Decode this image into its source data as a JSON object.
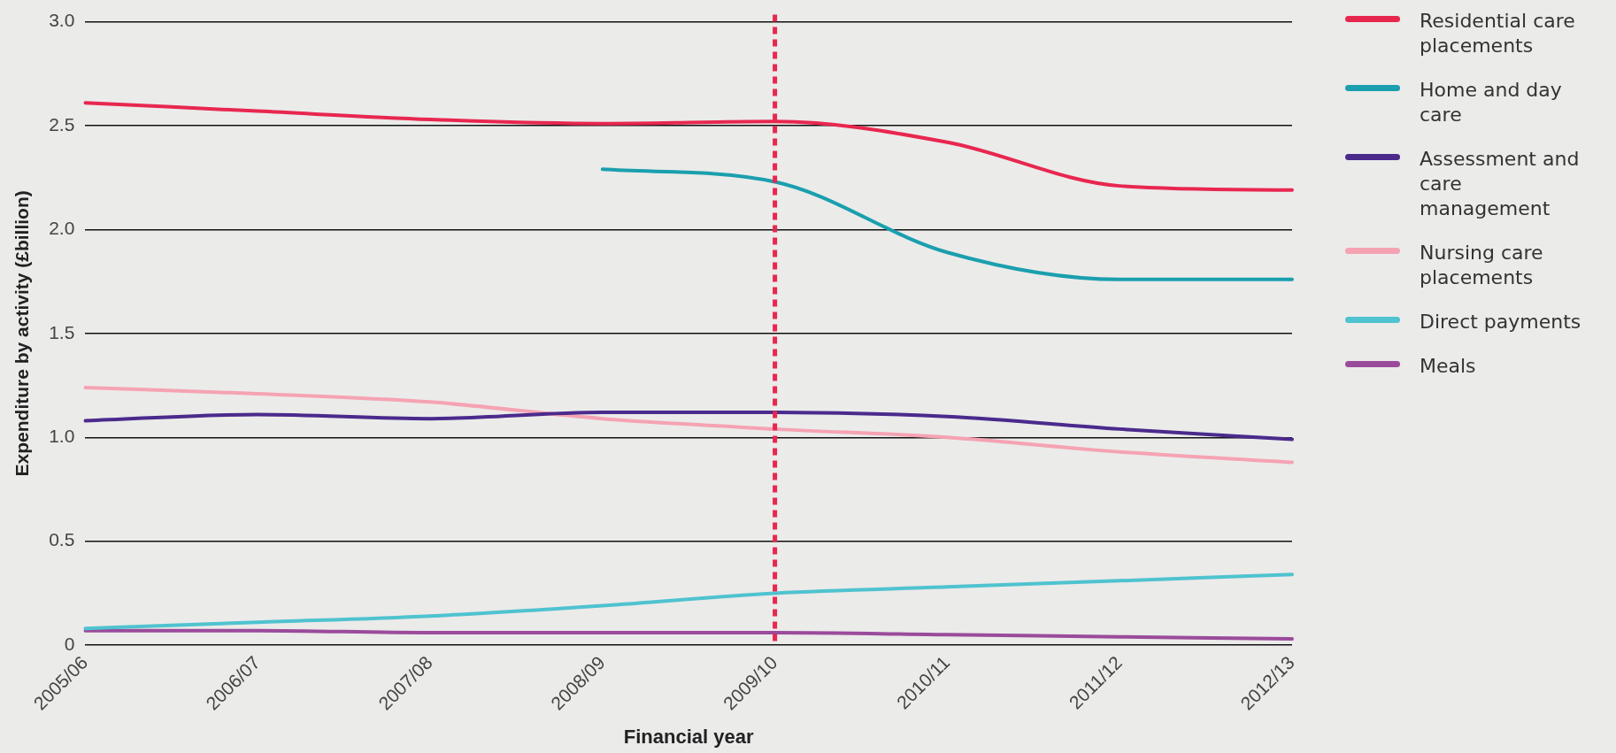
{
  "chart_data": {
    "type": "line",
    "xlabel": "Financial year",
    "ylabel": "Expenditure by activity (£billion)",
    "categories": [
      "2005/06",
      "2006/07",
      "2007/08",
      "2008/09",
      "2009/10",
      "2010/11",
      "2011/12",
      "2012/13"
    ],
    "series": [
      {
        "name": "Residential care placements",
        "color": "#e8274f",
        "values": [
          2.61,
          2.57,
          2.53,
          2.51,
          2.52,
          2.42,
          2.21,
          2.19
        ]
      },
      {
        "name": "Home and day care",
        "color": "#1a9fae",
        "values": [
          null,
          null,
          null,
          2.29,
          2.23,
          1.89,
          1.76,
          1.76
        ]
      },
      {
        "name": "Assessment and care management",
        "color": "#4b2a8c",
        "values": [
          1.08,
          1.11,
          1.09,
          1.12,
          1.12,
          1.1,
          1.04,
          0.99
        ]
      },
      {
        "name": "Nursing care placements",
        "color": "#f5a3b3",
        "values": [
          1.24,
          1.21,
          1.17,
          1.09,
          1.04,
          1.0,
          0.93,
          0.88
        ]
      },
      {
        "name": "Direct payments",
        "color": "#4fc3cf",
        "values": [
          0.08,
          0.11,
          0.14,
          0.19,
          0.25,
          0.28,
          0.31,
          0.34
        ]
      },
      {
        "name": "Meals",
        "color": "#9b4b9b",
        "values": [
          0.07,
          0.07,
          0.06,
          0.06,
          0.06,
          0.05,
          0.04,
          0.03
        ]
      }
    ],
    "ylim": [
      0,
      3.0
    ],
    "yticks": [
      0,
      {
        "value": 0.5,
        "label": "0.5"
      },
      {
        "value": 1,
        "label": "1.0"
      },
      {
        "value": 1.5,
        "label": "1.5"
      },
      {
        "value": 2,
        "label": "2.0"
      },
      {
        "value": 2.5,
        "label": "2.5"
      },
      {
        "value": 3,
        "label": "3.0"
      }
    ],
    "ref_lines": [
      {
        "axis": "x",
        "value": "2009/10",
        "color": "#e8274f",
        "line_style": "dashed"
      }
    ],
    "grid": "y",
    "legend": "right",
    "marker": "none",
    "line_style": "solid"
  }
}
